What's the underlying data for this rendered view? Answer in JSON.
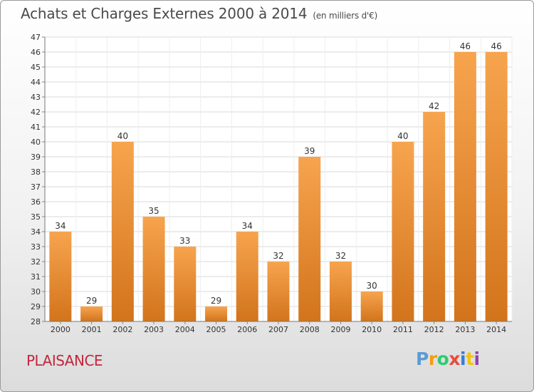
{
  "header": {
    "title": "Achats et Charges Externes 2000 à 2014",
    "subtitle": "(en milliers d'€)"
  },
  "footer": {
    "place": "PLAISANCE",
    "logo_letters": [
      "P",
      "r",
      "o",
      "x",
      "i",
      "t",
      "i"
    ]
  },
  "colors": {
    "bar_top": "#f7a44e",
    "bar_bottom": "#d2741c",
    "place_text": "#c3263d",
    "logo": [
      "#5b9bd5",
      "#f39c12",
      "#2ecc71",
      "#e74c3c",
      "#3a7bd5",
      "#f1c40f",
      "#8e44ad"
    ]
  },
  "chart_data": {
    "type": "bar",
    "title": "Achats et Charges Externes 2000 à 2014",
    "subtitle": "(en milliers d'€)",
    "categories": [
      "2000",
      "2001",
      "2002",
      "2003",
      "2004",
      "2005",
      "2006",
      "2007",
      "2008",
      "2009",
      "2010",
      "2011",
      "2012",
      "2013",
      "2014"
    ],
    "values": [
      34,
      29,
      40,
      35,
      33,
      29,
      34,
      32,
      39,
      32,
      30,
      40,
      42,
      46,
      46
    ],
    "ylim": [
      28,
      47
    ],
    "yticks": [
      28,
      29,
      30,
      31,
      32,
      33,
      34,
      35,
      36,
      37,
      38,
      39,
      40,
      41,
      42,
      43,
      44,
      45,
      46,
      47
    ],
    "grid": true,
    "data_labels": true
  }
}
